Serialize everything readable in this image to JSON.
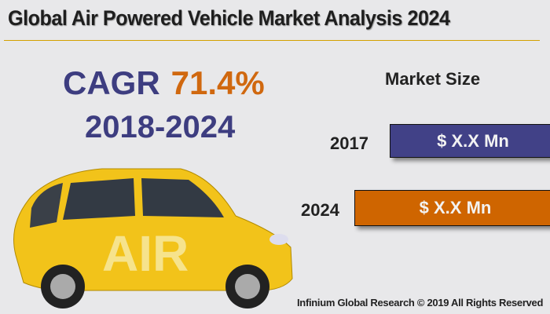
{
  "title": "Global Air Powered Vehicle Market Analysis 2024",
  "cagr": {
    "label": "CAGR",
    "value": "71.4%",
    "period": "2018-2024"
  },
  "market_size": {
    "heading": "Market Size",
    "rows": [
      {
        "year": "2017",
        "value": "$ X.X Mn",
        "color": "#414187"
      },
      {
        "year": "2024",
        "value": "$ X.X Mn",
        "color": "#cf6500"
      }
    ]
  },
  "car": {
    "text": "AIR",
    "color": "#f2c31a"
  },
  "footer": "Infinium Global Research © 2019 All Rights Reserved"
}
